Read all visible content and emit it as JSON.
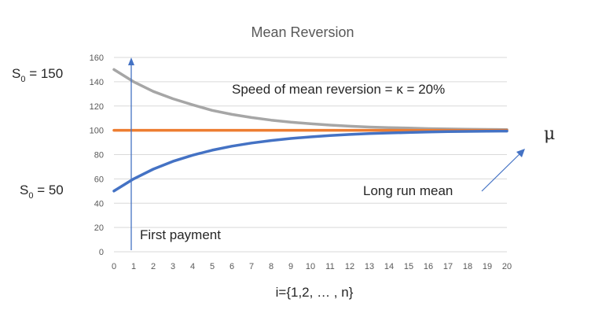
{
  "chart_data": {
    "type": "line",
    "title": "Mean Reversion",
    "xlabel": "i={1,2, … , n}",
    "ylabel": "",
    "x": [
      0,
      1,
      2,
      3,
      4,
      5,
      6,
      7,
      8,
      9,
      10,
      11,
      12,
      13,
      14,
      15,
      16,
      17,
      18,
      19,
      20
    ],
    "xticks": [
      "0",
      "1",
      "2",
      "3",
      "4",
      "5",
      "6",
      "7",
      "8",
      "9",
      "10",
      "11",
      "12",
      "13",
      "14",
      "15",
      "16",
      "17",
      "18",
      "19",
      "20"
    ],
    "yticks": [
      "0",
      "20",
      "40",
      "60",
      "80",
      "100",
      "120",
      "140",
      "160"
    ],
    "xlim": [
      0,
      20
    ],
    "ylim": [
      0,
      160
    ],
    "grid": true,
    "series": [
      {
        "name": "",
        "color": "#a6a6a6",
        "values": [
          150,
          140,
          132,
          126,
          121,
          116.4,
          113.1,
          110.5,
          108.4,
          106.7,
          105.4,
          104.3,
          103.4,
          102.7,
          102.2,
          101.8,
          101.4,
          101.1,
          100.9,
          100.7,
          100.6
        ]
      },
      {
        "name": "",
        "color": "#ed7d31",
        "values": [
          100,
          100,
          100,
          100,
          100,
          100,
          100,
          100,
          100,
          100,
          100,
          100,
          100,
          100,
          100,
          100,
          100,
          100,
          100,
          100,
          100
        ]
      },
      {
        "name": "",
        "color": "#4472c4",
        "values": [
          50,
          60,
          68,
          74.4,
          79.5,
          83.6,
          86.9,
          89.5,
          91.6,
          93.3,
          94.6,
          95.7,
          96.6,
          97.3,
          97.8,
          98.2,
          98.6,
          98.9,
          99.1,
          99.3,
          99.4
        ]
      }
    ],
    "annotations": {
      "s0_high": {
        "base": "S",
        "sub": "0",
        "rest": " = 150"
      },
      "s0_low": {
        "base": "S",
        "sub": "0",
        "rest": " = 50"
      },
      "speed": "Speed of mean reversion = κ = 20%",
      "mu": "μ",
      "long_run": "Long run mean",
      "first_payment": "First payment"
    },
    "colors": {
      "arrow": "#4472c4",
      "axis_text": "#595959"
    }
  }
}
